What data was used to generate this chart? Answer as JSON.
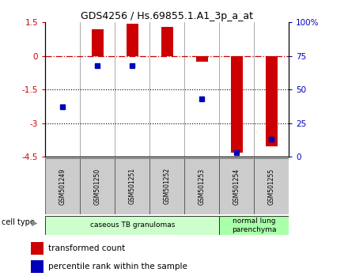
{
  "title": "GDS4256 / Hs.69855.1.A1_3p_a_at",
  "samples": [
    "GSM501249",
    "GSM501250",
    "GSM501251",
    "GSM501252",
    "GSM501253",
    "GSM501254",
    "GSM501255"
  ],
  "transformed_count": [
    0.0,
    1.2,
    1.45,
    1.3,
    -0.25,
    -4.3,
    -4.05
  ],
  "percentile_rank": [
    37,
    68,
    68,
    null,
    43,
    3,
    13
  ],
  "ylim_left": [
    -4.5,
    1.5
  ],
  "ylim_right": [
    0,
    100
  ],
  "yticks_left": [
    1.5,
    0,
    -1.5,
    -3,
    -4.5
  ],
  "yticklabels_left": [
    "1.5",
    "0",
    "-1.5",
    "-3",
    "-4.5"
  ],
  "yticks_right": [
    100,
    75,
    50,
    25,
    0
  ],
  "yticklabels_right": [
    "100%",
    "75",
    "50",
    "25",
    "0"
  ],
  "bar_color": "#cc0000",
  "dot_color": "#0000bb",
  "dotted_lines": [
    -1.5,
    -3.0
  ],
  "cell_types": [
    {
      "label": "caseous TB granulomas",
      "indices": [
        0,
        1,
        2,
        3,
        4
      ],
      "color": "#ccffcc"
    },
    {
      "label": "normal lung\nparenchyma",
      "indices": [
        5,
        6
      ],
      "color": "#aaffaa"
    }
  ],
  "legend_items": [
    {
      "color": "#cc0000",
      "label": "transformed count"
    },
    {
      "color": "#0000bb",
      "label": "percentile rank within the sample"
    }
  ],
  "bar_width": 0.35
}
